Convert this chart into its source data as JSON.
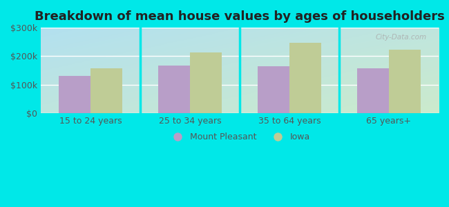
{
  "title": "Breakdown of mean house values by ages of householders",
  "categories": [
    "15 to 24 years",
    "25 to 34 years",
    "35 to 64 years",
    "65 years+"
  ],
  "mount_pleasant": [
    130000,
    168000,
    165000,
    158000
  ],
  "iowa": [
    158000,
    213000,
    248000,
    222000
  ],
  "bar_color_mp": "#b89ec8",
  "bar_color_iowa": "#bfcc96",
  "outer_bg": "#00e8e8",
  "ylim": [
    0,
    300000
  ],
  "yticks": [
    0,
    100000,
    200000,
    300000
  ],
  "ytick_labels": [
    "$0",
    "$100k",
    "$200k",
    "$300k"
  ],
  "legend_mp": "Mount Pleasant",
  "legend_iowa": "Iowa",
  "bar_width": 0.32,
  "title_fontsize": 13,
  "tick_fontsize": 9,
  "legend_fontsize": 9,
  "gradient_top_left": "#d0edcc",
  "gradient_bottom_right": "#e8faf8"
}
